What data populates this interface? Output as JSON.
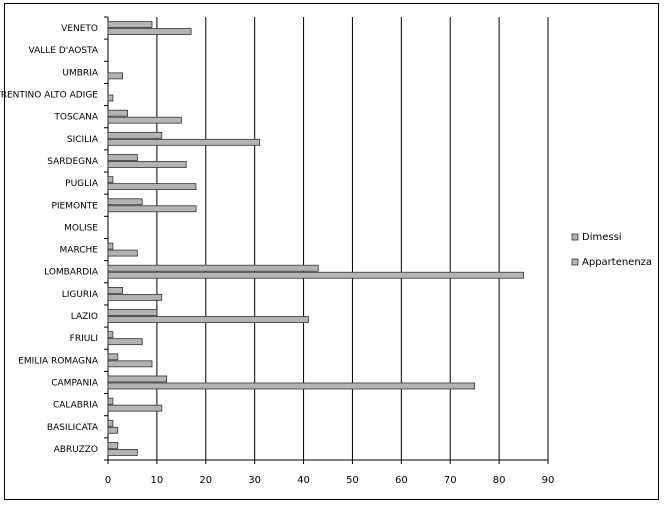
{
  "chart_data": {
    "type": "bar",
    "orientation": "horizontal",
    "categories": [
      "VENETO",
      "VALLE D'AOSTA",
      "UMBRIA",
      "TRENTINO ALTO ADIGE",
      "TOSCANA",
      "SICILIA",
      "SARDEGNA",
      "PUGLIA",
      "PIEMONTE",
      "MOLISE",
      "MARCHE",
      "LOMBARDIA",
      "LIGURIA",
      "LAZIO",
      "FRIULI",
      "EMILIA ROMAGNA",
      "CAMPANIA",
      "CALABRIA",
      "BASILICATA",
      "ABRUZZO"
    ],
    "series": [
      {
        "name": "Dimessi",
        "values": [
          9,
          0,
          0,
          0,
          4,
          11,
          6,
          1,
          7,
          0,
          1,
          43,
          3,
          10,
          1,
          2,
          12,
          1,
          1,
          2
        ]
      },
      {
        "name": "Appartenenza",
        "values": [
          17,
          0,
          3,
          1,
          15,
          31,
          16,
          18,
          18,
          0,
          6,
          85,
          11,
          41,
          7,
          9,
          75,
          11,
          2,
          6
        ]
      }
    ],
    "xlim": [
      0,
      90
    ],
    "xticks": [
      0,
      10,
      20,
      30,
      40,
      50,
      60,
      70,
      80,
      90
    ],
    "grid": true,
    "legend_position": "right",
    "colors": {
      "bar_fill": "#b3b3b3",
      "bar_stroke": "#333333",
      "grid": "#000000"
    }
  }
}
